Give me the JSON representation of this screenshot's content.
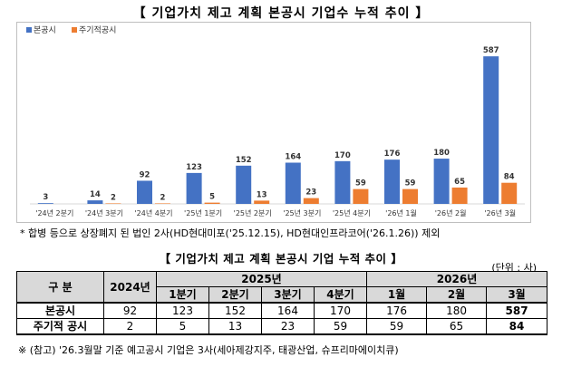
{
  "title": "【 기업가치 제고 계획 본공시 기업수 누적 추이 】",
  "chart_data": {
    "type": "bar",
    "categories": [
      "'24년 2분기",
      "'24년 3분기",
      "'24년 4분기",
      "'25년 1분기",
      "'25년 2분기",
      "'25년 3분기",
      "'25년 4분기",
      "'26년 1월",
      "'26년 2월",
      "'26년 3월"
    ],
    "series": [
      {
        "name": "본공시",
        "color": "#4472c4",
        "values": [
          3,
          14,
          92,
          123,
          152,
          164,
          170,
          176,
          180,
          587
        ]
      },
      {
        "name": "주기적공시",
        "color": "#ed7d31",
        "values": [
          0,
          2,
          2,
          5,
          13,
          23,
          59,
          59,
          65,
          84
        ]
      }
    ],
    "legend_position": "top-left",
    "ylim": [
      0,
      620
    ]
  },
  "note1": "* 합병 등으로 상장폐지 된 법인 2사(HD현대미포('25.12.15), HD현대인프라코어('26.1.26)) 제외",
  "table": {
    "title": "【 기업가치 제고 계획 본공시 기업 누적 추이 】",
    "unit": "(단위 : 사)",
    "corner": "구 분",
    "col_2024": "2024년",
    "col_2025": "2025년",
    "col_2026": "2026년",
    "sub_2025": [
      "1분기",
      "2분기",
      "3분기",
      "4분기"
    ],
    "sub_2026": [
      "1월",
      "2월",
      "3월"
    ],
    "rows": [
      {
        "label": "본공시",
        "values": [
          "92",
          "123",
          "152",
          "164",
          "170",
          "176",
          "180",
          "587"
        ]
      },
      {
        "label": "주기적 공시",
        "values": [
          "2",
          "5",
          "13",
          "23",
          "59",
          "59",
          "65",
          "84"
        ]
      }
    ]
  },
  "note2": "※ (참고) '26.3월말 기준 예고공시 기업은 3사(세아제강지주, 태광산업, 슈프리마에이치큐)"
}
